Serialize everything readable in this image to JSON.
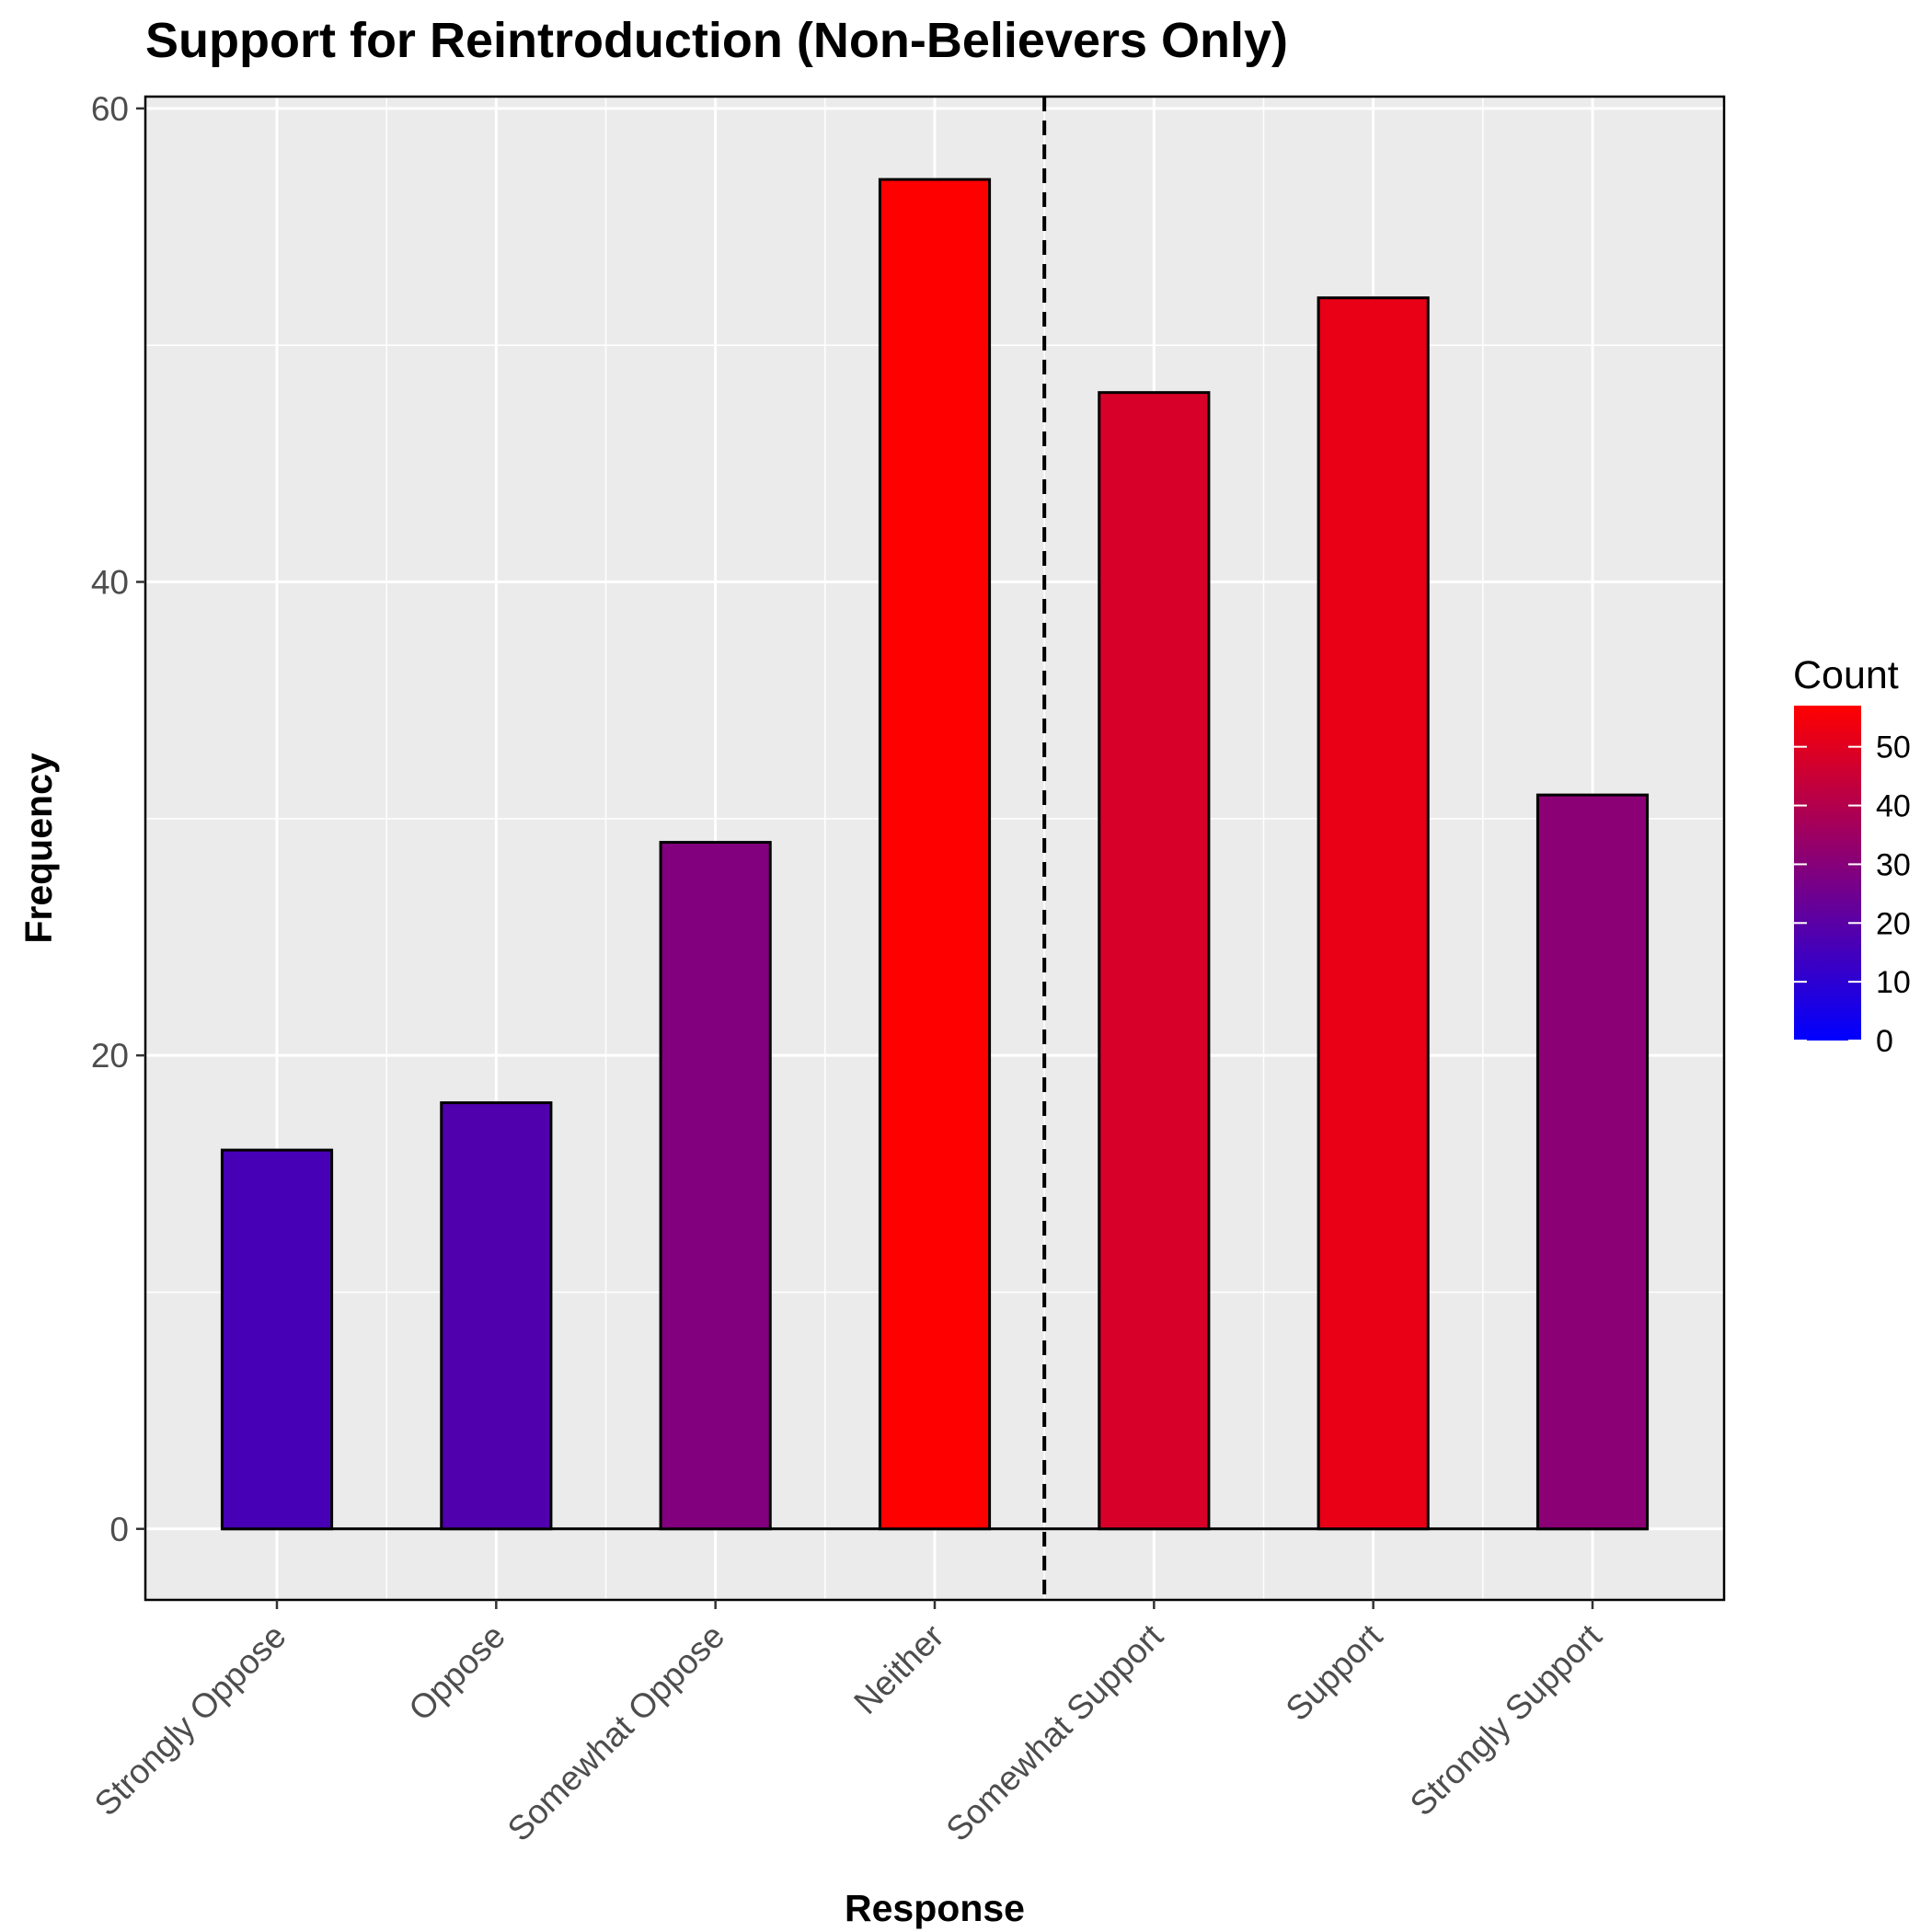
{
  "chart_data": {
    "type": "bar",
    "title": "Support for Reintroduction (Non-Believers Only)",
    "xlabel": "Response",
    "ylabel": "Frequency",
    "categories": [
      "Strongly Oppose",
      "Oppose",
      "Somewhat Oppose",
      "Neither",
      "Somewhat Support",
      "Support",
      "Strongly Support"
    ],
    "values": [
      16,
      18,
      29,
      57,
      48,
      52,
      31
    ],
    "ylim": [
      -3,
      60.5
    ],
    "yticks": [
      0,
      20,
      40,
      60
    ],
    "ytick_labels": [
      "0",
      "20",
      "40",
      "60"
    ],
    "grid": true,
    "panel_background": "#ebebeb",
    "bar_outline_color": "#000000",
    "reference_line": {
      "style": "dashed",
      "between": [
        "Neither",
        "Somewhat Support"
      ]
    },
    "color_scale": {
      "title": "Count",
      "low_color": "#0000ff",
      "high_color": "#ff0000",
      "domain": [
        0,
        57
      ],
      "ticks": [
        0,
        10,
        20,
        30,
        40,
        50
      ],
      "tick_labels": [
        "0",
        "10",
        "20",
        "30",
        "40",
        "50"
      ],
      "legend_position": "right"
    }
  }
}
